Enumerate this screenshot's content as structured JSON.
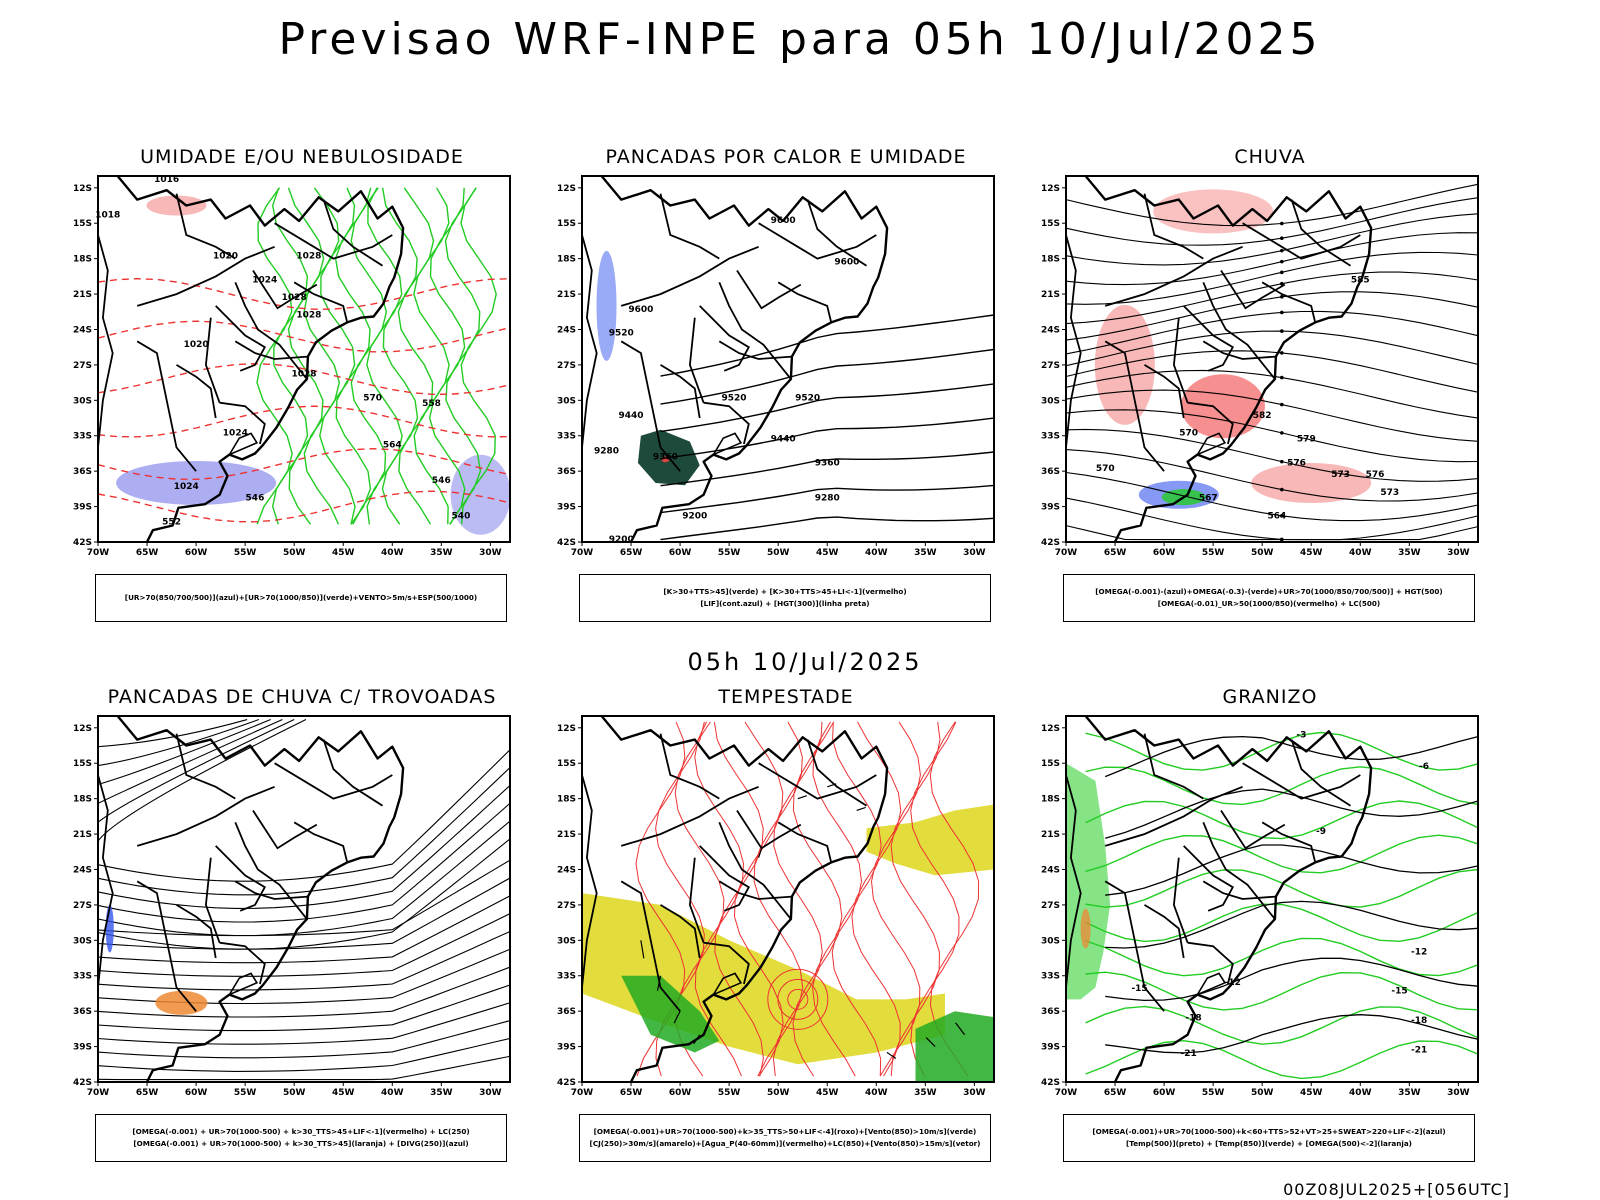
{
  "header": {
    "title": "Previsao WRF-INPE  para 05h 10/Jul/2025"
  },
  "middle_title": "05h 10/Jul/2025",
  "footer": "00Z08JUL2025+[056UTC]",
  "axes": {
    "lat_labels": [
      "12S",
      "15S",
      "18S",
      "21S",
      "24S",
      "27S",
      "30S",
      "33S",
      "36S",
      "39S",
      "42S"
    ],
    "lon_labels": [
      "70W",
      "65W",
      "60W",
      "55W",
      "50W",
      "45W",
      "40W",
      "35W",
      "30W"
    ]
  },
  "panels": [
    {
      "title": "UMIDADE E/OU NEBULOSIDADE",
      "caption": [
        "[UR>70(850/700/500)](azul)+[UR>70(1000/850)](verde)+VENTO>5m/s+ESP(500/1000)"
      ],
      "contour_labels": [
        "1016",
        "1018",
        "1020",
        "1024",
        "1028",
        "1028",
        "1020",
        "1024",
        "1028",
        "1028",
        "1024",
        "552",
        "570",
        "564",
        "558",
        "546",
        "546",
        "540"
      ]
    },
    {
      "title": "PANCADAS POR CALOR E UMIDADE",
      "caption": [
        "[K>30+TTS>45](verde) + [K>30+TTS>45+LI<-1](vermelho)",
        "[LIF](cont.azul) + [HGT(300)](linha preta)"
      ],
      "contour_labels": [
        "9600",
        "9600",
        "9600",
        "9520",
        "9520",
        "9520",
        "9440",
        "9440",
        "9360",
        "9360",
        "9280",
        "9280",
        "9200",
        "9200"
      ]
    },
    {
      "title": "CHUVA",
      "caption": [
        "[OMEGA(-0.001)-(azul)+OMEGA(-0.3)-(verde)+UR>70(1000/850/700/500)] + HGT(500)",
        "[OMEGA(-0.01)_UR>50(1000/850)(vermelho) + LC(500)"
      ],
      "contour_labels": [
        "585",
        "582",
        "579",
        "576",
        "573",
        "570",
        "567",
        "564",
        "576",
        "573",
        "570"
      ]
    },
    {
      "title": "PANCADAS DE CHUVA C/ TROVOADAS",
      "caption": [
        "[OMEGA(-0.001) + UR>70(1000-500) + k>30_TTS>45+LIF<-1](vermelho) + LC(250)",
        "[OMEGA(-0.001) + UR>70(1000-500) + k>30_TTS>45](laranja) + [DIVG(250)](azul)"
      ],
      "contour_labels": []
    },
    {
      "title": "TEMPESTADE",
      "caption": [
        "[OMEGA(-0.001)+UR>70(1000-500)+k>35_TTS>50+LIF<-4](roxo)+[Vento(850)>10m/s](verde)",
        "[CJ(250)>30m/s](amarelo)+[Agua_P(40-60mm)](vermelho)+LC(850)+[Vento(850)>15m/s](vetor)"
      ],
      "contour_labels": []
    },
    {
      "title": "GRANIZO",
      "caption": [
        "[OMEGA(-0.001)+UR>70(1000-500)+k<60+TTS>52+VT>25+SWEAT>220+LIF<-2](azul)",
        "[Temp(500)](preto) + [Temp(850)](verde) + [OMEGA(500)<-2](laranja)"
      ],
      "contour_labels": [
        "-3",
        "-6",
        "-9",
        "-12",
        "-12",
        "-15",
        "-15",
        "-18",
        "-18",
        "-21",
        "-21"
      ]
    }
  ],
  "colors": {
    "coast": "#000000",
    "humidity_green": "#22cc22",
    "humidity_blue": "#6a6ae8",
    "thickness_red": "#ee3333",
    "rain_red": "#ee3333",
    "jet_yellow": "#e2dc3c",
    "hail_orange": "#ee8833",
    "cell_dark": "#1e4a3c"
  }
}
